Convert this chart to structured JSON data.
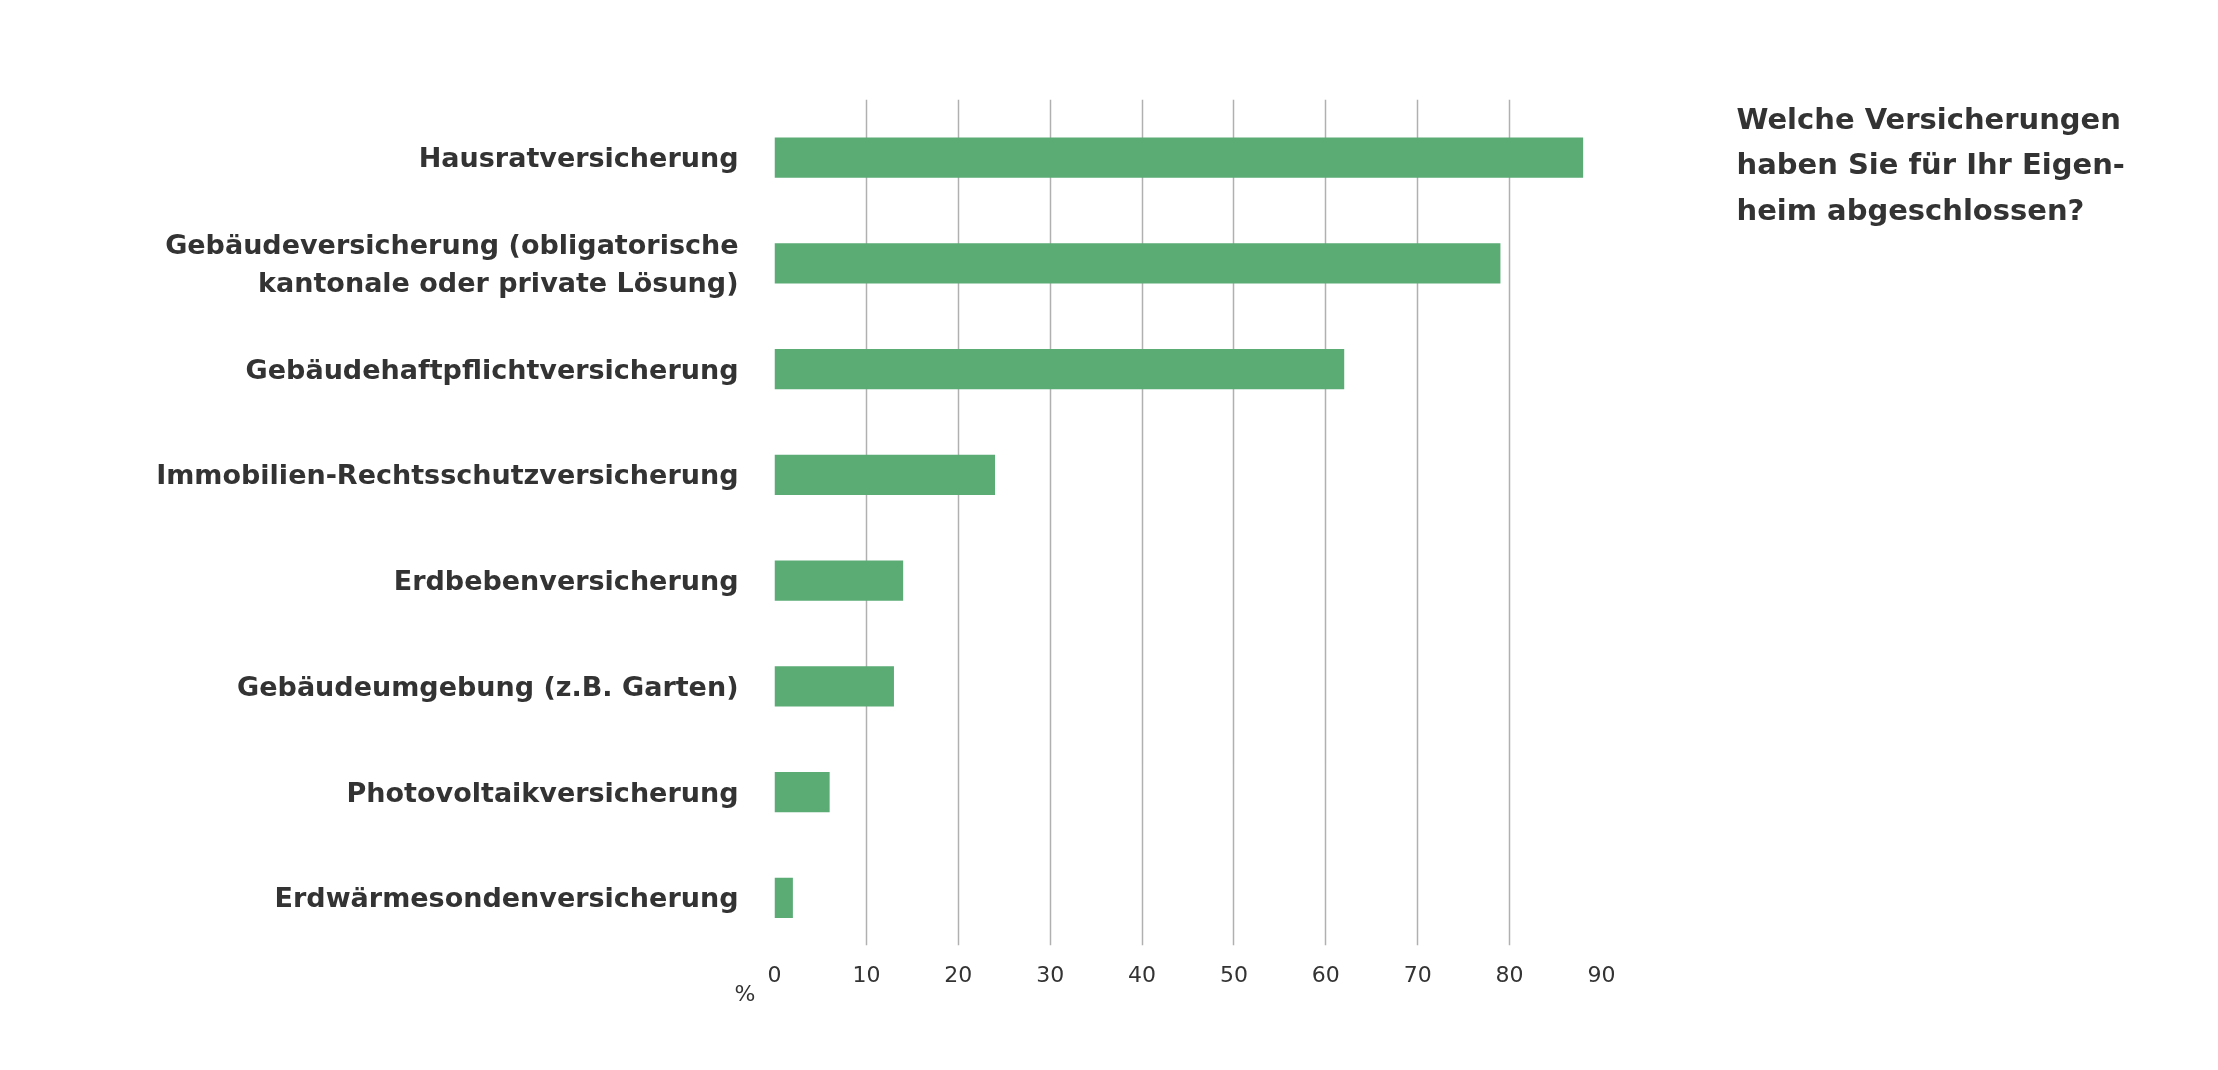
{
  "chart_data": {
    "type": "bar",
    "orientation": "horizontal",
    "title": "Welche Versicherungen\nhaben Sie für Ihr Eigen-\nheim abgeschlossen?",
    "xlabel": "%",
    "categories": [
      "Hausratversicherung",
      "Gebäudeversicherung (obligatorische\nkantonale oder private Lösung)",
      "Gebäudehaftpflichtversicherung",
      "Immobilien-Rechtsschutzversicherung",
      "Erdbebenversicherung",
      "Gebäudeumgebung (z.B. Garten)",
      "Photovoltaikversicherung",
      "Erdwärmesondenversicherung"
    ],
    "values": [
      88,
      79,
      62,
      24,
      14,
      13,
      6,
      2
    ],
    "color": "#5aab74",
    "xlim": [
      0,
      90
    ],
    "xticks": [
      0,
      10,
      20,
      30,
      40,
      50,
      60,
      70,
      80,
      90
    ],
    "grid": "x"
  }
}
